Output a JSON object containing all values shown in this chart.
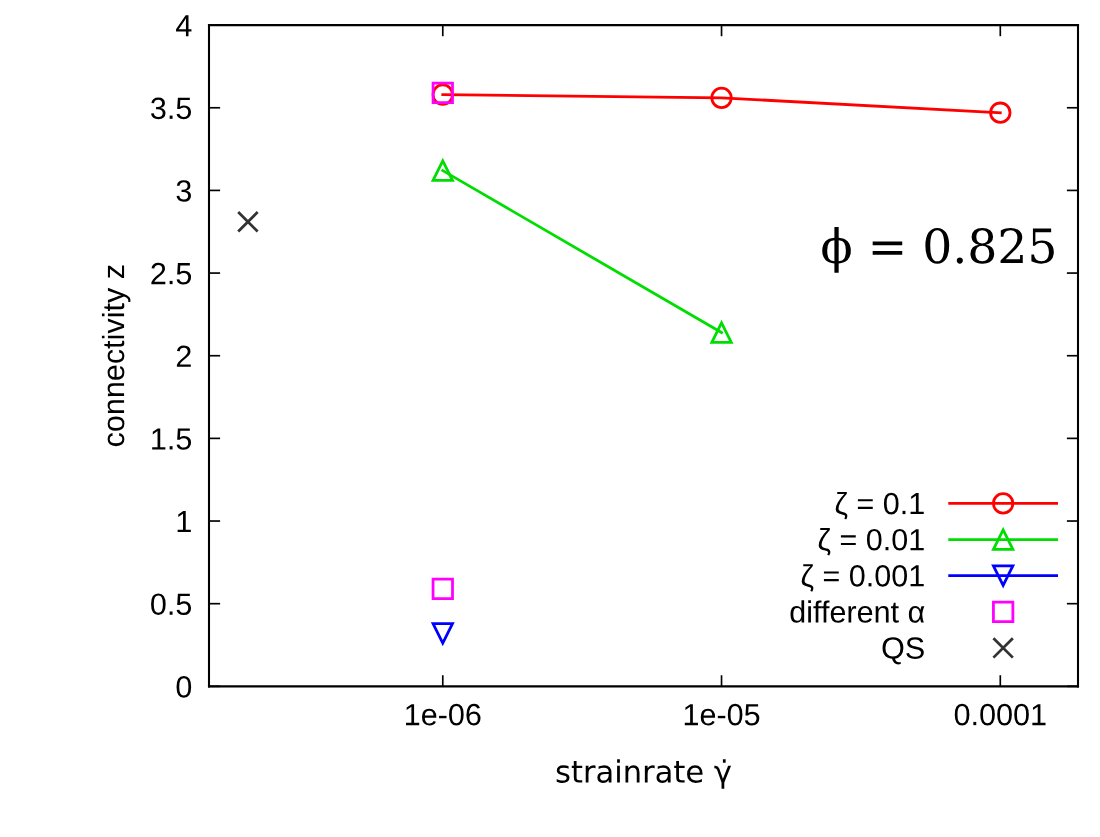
{
  "chart_data": {
    "type": "line",
    "xlabel": "strainrate γ̇",
    "ylabel": "connectivity z",
    "log": "x",
    "xlim": [
      1.45e-07,
      0.00019
    ],
    "xticks": [
      {
        "value": 1e-06,
        "label": "1e-06"
      },
      {
        "value": 1e-05,
        "label": "1e-05"
      },
      {
        "value": 0.0001,
        "label": "0.0001"
      }
    ],
    "ylim": [
      0,
      4
    ],
    "yticks": [
      0,
      0.5,
      1,
      1.5,
      2,
      2.5,
      3,
      3.5,
      4
    ],
    "legend": "bottom right",
    "grid": false,
    "annotations": [
      "ϕ = 0.825"
    ],
    "series": [
      {
        "name": "ζ = 0.1",
        "color": "#ff0000",
        "marker": "circle",
        "x": [
          1e-06,
          1e-05,
          0.0001
        ],
        "values": [
          3.58,
          3.56,
          3.47
        ]
      },
      {
        "name": "ζ = 0.01",
        "color": "#00dd00",
        "marker": "triangle",
        "x": [
          1e-06,
          1e-05
        ],
        "values": [
          3.12,
          2.14
        ]
      },
      {
        "name": "ζ = 0.001",
        "color": "#0000ff",
        "marker": "triangle_down",
        "x": [
          1e-06
        ],
        "values": [
          0.32
        ]
      },
      {
        "name": "different α",
        "color": "#ff00ff",
        "marker": "square",
        "type": "scatter",
        "x": [
          1e-06,
          1e-06
        ],
        "values": [
          3.59,
          0.59
        ]
      },
      {
        "name": "QS",
        "color": "#333333",
        "marker": "cross",
        "type": "scatter",
        "x": [
          2e-07
        ],
        "values": [
          2.81
        ]
      }
    ]
  }
}
